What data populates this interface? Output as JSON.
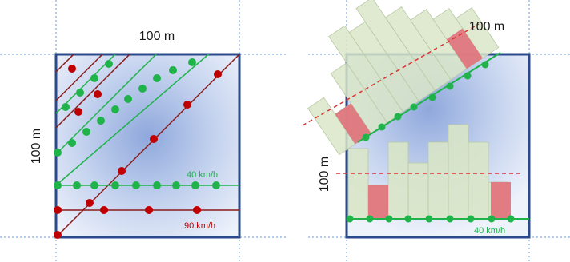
{
  "left_panel": {
    "top_dimension": "100 m",
    "side_dimension": "100 m",
    "green_speed_label": "40 km/h",
    "red_speed_label": "90 km/h"
  },
  "right_panel": {
    "top_dimension": "100 m",
    "side_dimension": "100 m",
    "green_speed_label": "40 km/h"
  },
  "colors": {
    "square_border": "#2b4a8b",
    "guide_line": "#6a9bd8",
    "green": "#1fb34a",
    "red_track": "#8a1a1a",
    "red_dot": "#c00000",
    "bar_fill": "#d9e6c8",
    "bar_highlight": "#e0707a",
    "dashed": "#e03030"
  }
}
